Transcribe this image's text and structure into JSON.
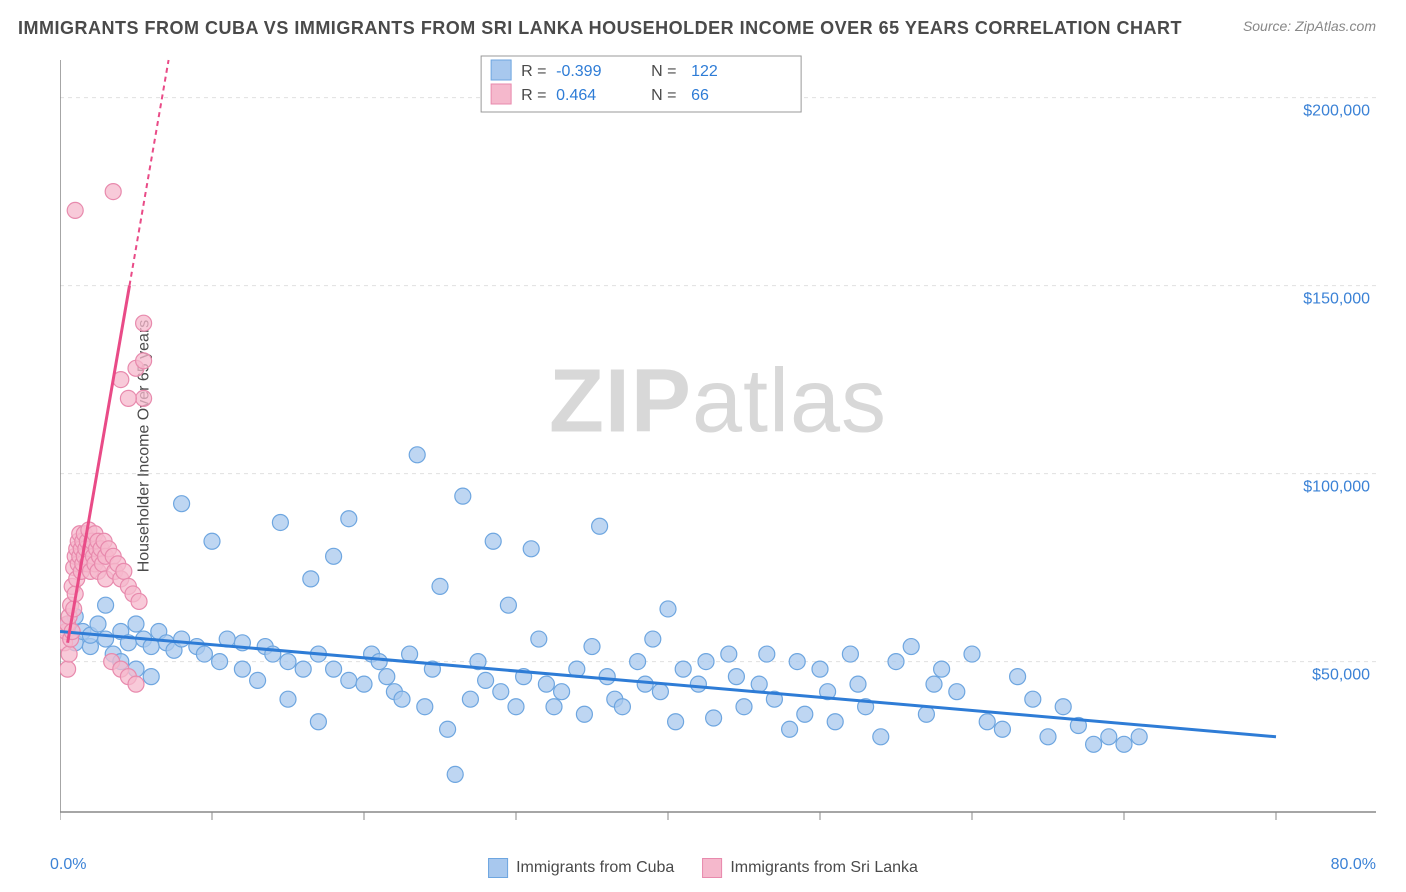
{
  "title": "IMMIGRANTS FROM CUBA VS IMMIGRANTS FROM SRI LANKA HOUSEHOLDER INCOME OVER 65 YEARS CORRELATION CHART",
  "source": "Source: ZipAtlas.com",
  "watermark_bold": "ZIP",
  "watermark_light": "atlas",
  "y_axis_label": "Householder Income Over 65 years",
  "x_min_label": "0.0%",
  "x_max_label": "80.0%",
  "chart": {
    "type": "scatter",
    "xlim": [
      0,
      80
    ],
    "ylim": [
      10000,
      210000
    ],
    "y_ticks": [
      50000,
      100000,
      150000,
      200000
    ],
    "y_tick_labels": [
      "$50,000",
      "$100,000",
      "$150,000",
      "$200,000"
    ],
    "x_tick_positions": [
      0,
      10,
      20,
      30,
      40,
      50,
      60,
      70,
      80
    ],
    "background_color": "#ffffff",
    "grid_color": "#e0e0e0",
    "axis_color": "#888888",
    "series": [
      {
        "name": "Immigrants from Cuba",
        "color_fill": "#a8c8ee",
        "color_stroke": "#6ea6e0",
        "marker_radius": 8,
        "marker_opacity": 0.75,
        "trend_color": "#2e7cd6",
        "trend_width": 3,
        "trend_dash": "none",
        "R": "-0.399",
        "N": "122",
        "trend_x1": 0,
        "trend_y1": 58000,
        "trend_x2": 80,
        "trend_y2": 30000,
        "points": [
          [
            0.5,
            60000
          ],
          [
            1,
            62000
          ],
          [
            1,
            55000
          ],
          [
            1.5,
            58000
          ],
          [
            2,
            54000
          ],
          [
            2,
            57000
          ],
          [
            2.5,
            60000
          ],
          [
            3,
            56000
          ],
          [
            3,
            65000
          ],
          [
            3.5,
            52000
          ],
          [
            4,
            58000
          ],
          [
            4,
            50000
          ],
          [
            4.5,
            55000
          ],
          [
            5,
            60000
          ],
          [
            5,
            48000
          ],
          [
            5.5,
            56000
          ],
          [
            6,
            54000
          ],
          [
            6,
            46000
          ],
          [
            6.5,
            58000
          ],
          [
            7,
            55000
          ],
          [
            7.5,
            53000
          ],
          [
            8,
            56000
          ],
          [
            8,
            92000
          ],
          [
            9,
            54000
          ],
          [
            9.5,
            52000
          ],
          [
            10,
            82000
          ],
          [
            10.5,
            50000
          ],
          [
            11,
            56000
          ],
          [
            12,
            48000
          ],
          [
            12,
            55000
          ],
          [
            13,
            45000
          ],
          [
            13.5,
            54000
          ],
          [
            14,
            52000
          ],
          [
            14.5,
            87000
          ],
          [
            15,
            40000
          ],
          [
            15,
            50000
          ],
          [
            16,
            48000
          ],
          [
            16.5,
            72000
          ],
          [
            17,
            34000
          ],
          [
            17,
            52000
          ],
          [
            18,
            78000
          ],
          [
            18,
            48000
          ],
          [
            19,
            45000
          ],
          [
            19,
            88000
          ],
          [
            20,
            44000
          ],
          [
            20.5,
            52000
          ],
          [
            21,
            50000
          ],
          [
            21.5,
            46000
          ],
          [
            22,
            42000
          ],
          [
            22.5,
            40000
          ],
          [
            23,
            52000
          ],
          [
            23.5,
            105000
          ],
          [
            24,
            38000
          ],
          [
            24.5,
            48000
          ],
          [
            25,
            70000
          ],
          [
            25.5,
            32000
          ],
          [
            26,
            20000
          ],
          [
            26.5,
            94000
          ],
          [
            27,
            40000
          ],
          [
            27.5,
            50000
          ],
          [
            28,
            45000
          ],
          [
            28.5,
            82000
          ],
          [
            29,
            42000
          ],
          [
            29.5,
            65000
          ],
          [
            30,
            38000
          ],
          [
            30.5,
            46000
          ],
          [
            31,
            80000
          ],
          [
            31.5,
            56000
          ],
          [
            32,
            44000
          ],
          [
            32.5,
            38000
          ],
          [
            33,
            42000
          ],
          [
            34,
            48000
          ],
          [
            34.5,
            36000
          ],
          [
            35,
            54000
          ],
          [
            35.5,
            86000
          ],
          [
            36,
            46000
          ],
          [
            36.5,
            40000
          ],
          [
            37,
            38000
          ],
          [
            38,
            50000
          ],
          [
            38.5,
            44000
          ],
          [
            39,
            56000
          ],
          [
            39.5,
            42000
          ],
          [
            40,
            64000
          ],
          [
            40.5,
            34000
          ],
          [
            41,
            48000
          ],
          [
            42,
            44000
          ],
          [
            42.5,
            50000
          ],
          [
            43,
            35000
          ],
          [
            44,
            52000
          ],
          [
            44.5,
            46000
          ],
          [
            45,
            38000
          ],
          [
            46,
            44000
          ],
          [
            46.5,
            52000
          ],
          [
            47,
            40000
          ],
          [
            48,
            32000
          ],
          [
            48.5,
            50000
          ],
          [
            49,
            36000
          ],
          [
            50,
            48000
          ],
          [
            50.5,
            42000
          ],
          [
            51,
            34000
          ],
          [
            52,
            52000
          ],
          [
            52.5,
            44000
          ],
          [
            53,
            38000
          ],
          [
            54,
            30000
          ],
          [
            55,
            50000
          ],
          [
            56,
            54000
          ],
          [
            57,
            36000
          ],
          [
            57.5,
            44000
          ],
          [
            58,
            48000
          ],
          [
            59,
            42000
          ],
          [
            60,
            52000
          ],
          [
            61,
            34000
          ],
          [
            62,
            32000
          ],
          [
            63,
            46000
          ],
          [
            64,
            40000
          ],
          [
            65,
            30000
          ],
          [
            66,
            38000
          ],
          [
            67,
            33000
          ],
          [
            68,
            28000
          ],
          [
            69,
            30000
          ],
          [
            70,
            28000
          ],
          [
            71,
            30000
          ]
        ]
      },
      {
        "name": "Immigrants from Sri Lanka",
        "color_fill": "#f5b8cc",
        "color_stroke": "#e88aad",
        "marker_radius": 8,
        "marker_opacity": 0.75,
        "trend_color": "#e94b87",
        "trend_width": 3,
        "trend_dash": "5,4",
        "R": "0.464",
        "N": "66",
        "trend_x1": 0.5,
        "trend_y1": 55000,
        "trend_x2": 8,
        "trend_y2": 230000,
        "trend_solid_until_y": 150000,
        "points": [
          [
            0.3,
            55000
          ],
          [
            0.4,
            58000
          ],
          [
            0.5,
            48000
          ],
          [
            0.5,
            60000
          ],
          [
            0.6,
            52000
          ],
          [
            0.6,
            62000
          ],
          [
            0.7,
            65000
          ],
          [
            0.7,
            56000
          ],
          [
            0.8,
            70000
          ],
          [
            0.8,
            58000
          ],
          [
            0.9,
            75000
          ],
          [
            0.9,
            64000
          ],
          [
            1.0,
            78000
          ],
          [
            1.0,
            68000
          ],
          [
            1.1,
            80000
          ],
          [
            1.1,
            72000
          ],
          [
            1.2,
            82000
          ],
          [
            1.2,
            76000
          ],
          [
            1.3,
            84000
          ],
          [
            1.3,
            78000
          ],
          [
            1.4,
            80000
          ],
          [
            1.4,
            74000
          ],
          [
            1.5,
            82000
          ],
          [
            1.5,
            76000
          ],
          [
            1.6,
            84000
          ],
          [
            1.6,
            78000
          ],
          [
            1.7,
            80000
          ],
          [
            1.8,
            82000
          ],
          [
            1.8,
            76000
          ],
          [
            1.9,
            85000
          ],
          [
            2.0,
            80000
          ],
          [
            2.0,
            74000
          ],
          [
            2.1,
            82000
          ],
          [
            2.2,
            78000
          ],
          [
            2.3,
            84000
          ],
          [
            2.3,
            76000
          ],
          [
            2.4,
            80000
          ],
          [
            2.5,
            82000
          ],
          [
            2.5,
            74000
          ],
          [
            2.6,
            78000
          ],
          [
            2.7,
            80000
          ],
          [
            2.8,
            76000
          ],
          [
            2.9,
            82000
          ],
          [
            3.0,
            78000
          ],
          [
            3.0,
            72000
          ],
          [
            3.2,
            80000
          ],
          [
            3.4,
            50000
          ],
          [
            3.5,
            78000
          ],
          [
            3.6,
            74000
          ],
          [
            3.8,
            76000
          ],
          [
            4.0,
            48000
          ],
          [
            4.0,
            72000
          ],
          [
            4.2,
            74000
          ],
          [
            4.5,
            70000
          ],
          [
            4.5,
            46000
          ],
          [
            4.8,
            68000
          ],
          [
            5.0,
            44000
          ],
          [
            5.2,
            66000
          ],
          [
            5.5,
            120000
          ],
          [
            1.0,
            170000
          ],
          [
            3.5,
            175000
          ],
          [
            5.5,
            140000
          ],
          [
            4.5,
            120000
          ],
          [
            5.0,
            128000
          ],
          [
            5.5,
            130000
          ],
          [
            4.0,
            125000
          ]
        ]
      }
    ]
  },
  "top_legend": {
    "R_label": "R =",
    "N_label": "N =",
    "value_color": "#2e7cd6",
    "text_color": "#4a4a4a"
  },
  "bottom_legend": {
    "items": [
      {
        "label": "Immigrants from Cuba",
        "fill": "#a8c8ee",
        "stroke": "#6ea6e0"
      },
      {
        "label": "Immigrants from Sri Lanka",
        "fill": "#f5b8cc",
        "stroke": "#e88aad"
      }
    ]
  }
}
